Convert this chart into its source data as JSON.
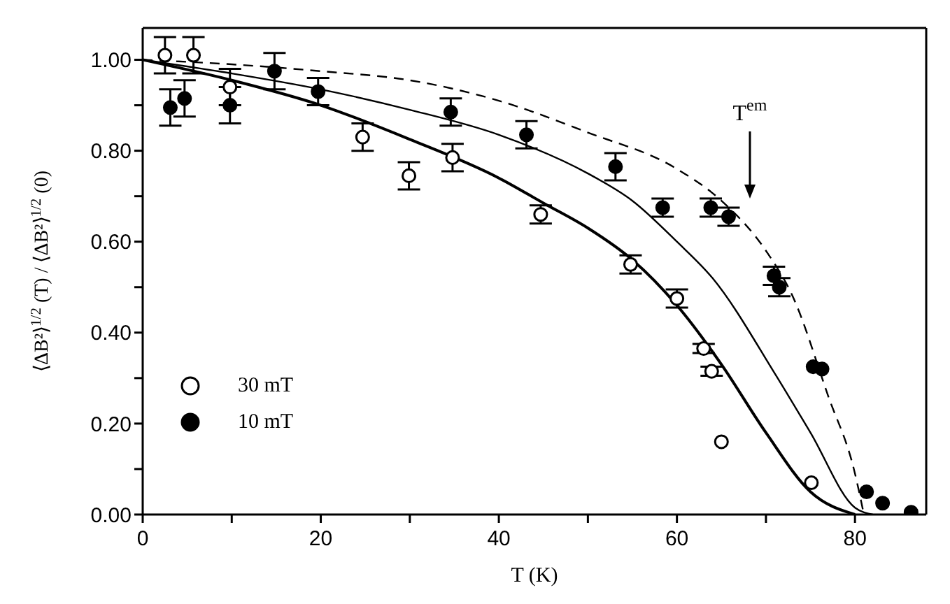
{
  "chart_data": {
    "type": "scatter",
    "xlabel": "T (K)",
    "ylabel": "⟨ΔB²⟩$^{1/2}$ (T) / ⟨ΔB²⟩$^{1/2}$ (0)",
    "xlim": [
      0,
      88
    ],
    "ylim": [
      0,
      1.07
    ],
    "xticks": [
      0,
      {
        "value": 10,
        "label": null
      },
      20,
      {
        "value": 30,
        "label": null
      },
      40,
      {
        "value": 50,
        "label": null
      },
      60,
      {
        "value": 70,
        "label": null
      },
      80
    ],
    "yticks": [
      {
        "value": 0,
        "label": "0.00"
      },
      {
        "value": 0.1,
        "label": null
      },
      {
        "value": 0.2,
        "label": "0.20"
      },
      {
        "value": 0.3,
        "label": null
      },
      {
        "value": 0.4,
        "label": "0.40"
      },
      {
        "value": 0.5,
        "label": null
      },
      {
        "value": 0.6,
        "label": "0.60"
      },
      {
        "value": 0.7,
        "label": null
      },
      {
        "value": 0.8,
        "label": "0.80"
      },
      {
        "value": 0.9,
        "label": null
      },
      {
        "value": 1.0,
        "label": "1.00"
      }
    ],
    "grid": false,
    "legend": "bottom left",
    "annotations": [
      "T$^{em}$"
    ],
    "series": [
      {
        "name": "30 mT",
        "marker": "circle",
        "color": "#ffffff",
        "x": [
          2.5,
          5.7,
          9.8,
          24.7,
          29.9,
          34.8,
          44.7,
          54.8,
          60.0,
          63.0,
          63.9,
          65.0,
          75.1
        ],
        "values": [
          1.01,
          1.01,
          0.94,
          0.83,
          0.745,
          0.785,
          0.66,
          0.55,
          0.475,
          0.365,
          0.315,
          0.16,
          0.07
        ],
        "errors": [
          0.04,
          0.04,
          0.04,
          0.03,
          0.03,
          0.03,
          0.02,
          0.02,
          0.02,
          0.01,
          0.01,
          null,
          null
        ]
      },
      {
        "name": "10 mT",
        "marker": "circle",
        "color": "#000000",
        "x": [
          3.1,
          4.7,
          9.8,
          14.8,
          19.7,
          34.6,
          43.1,
          53.1,
          58.4,
          63.8,
          65.8,
          70.9,
          71.5,
          75.3,
          76.3,
          81.3,
          83.1,
          86.3
        ],
        "values": [
          0.895,
          0.915,
          0.9,
          0.975,
          0.93,
          0.885,
          0.835,
          0.765,
          0.675,
          0.675,
          0.655,
          0.525,
          0.5,
          0.325,
          0.32,
          0.05,
          0.025,
          0.005
        ],
        "errors": [
          0.04,
          0.04,
          0.04,
          0.04,
          0.03,
          0.03,
          0.03,
          0.03,
          0.02,
          0.02,
          0.02,
          0.02,
          0.02,
          null,
          null,
          null,
          null,
          null
        ]
      },
      {
        "type": "line",
        "marker": "none",
        "color": "#000000",
        "line_style": "solid",
        "x": [
          0,
          10,
          20,
          30,
          40,
          45,
          50,
          55,
          60,
          65,
          70,
          75,
          80
        ],
        "values": [
          1.0,
          0.955,
          0.9,
          0.825,
          0.74,
          0.685,
          0.63,
          0.56,
          0.46,
          0.33,
          0.18,
          0.05,
          0.0
        ]
      },
      {
        "type": "line",
        "marker": "none",
        "color": "#000000",
        "line_style": "solid",
        "x": [
          0,
          10,
          20,
          30,
          40,
          50,
          55,
          60,
          64,
          71,
          75,
          80,
          82
        ],
        "values": [
          1.0,
          0.97,
          0.935,
          0.89,
          0.835,
          0.75,
          0.69,
          0.6,
          0.52,
          0.31,
          0.18,
          0.015,
          0.0
        ]
      },
      {
        "type": "line",
        "marker": "none",
        "color": "#000000",
        "line_style": "dashed",
        "x": [
          0,
          10,
          20,
          30,
          40,
          50,
          60,
          65,
          70,
          73,
          77,
          80,
          81
        ],
        "values": [
          1.0,
          0.99,
          0.975,
          0.955,
          0.91,
          0.84,
          0.76,
          0.69,
          0.58,
          0.48,
          0.26,
          0.09,
          0.0
        ]
      }
    ]
  }
}
